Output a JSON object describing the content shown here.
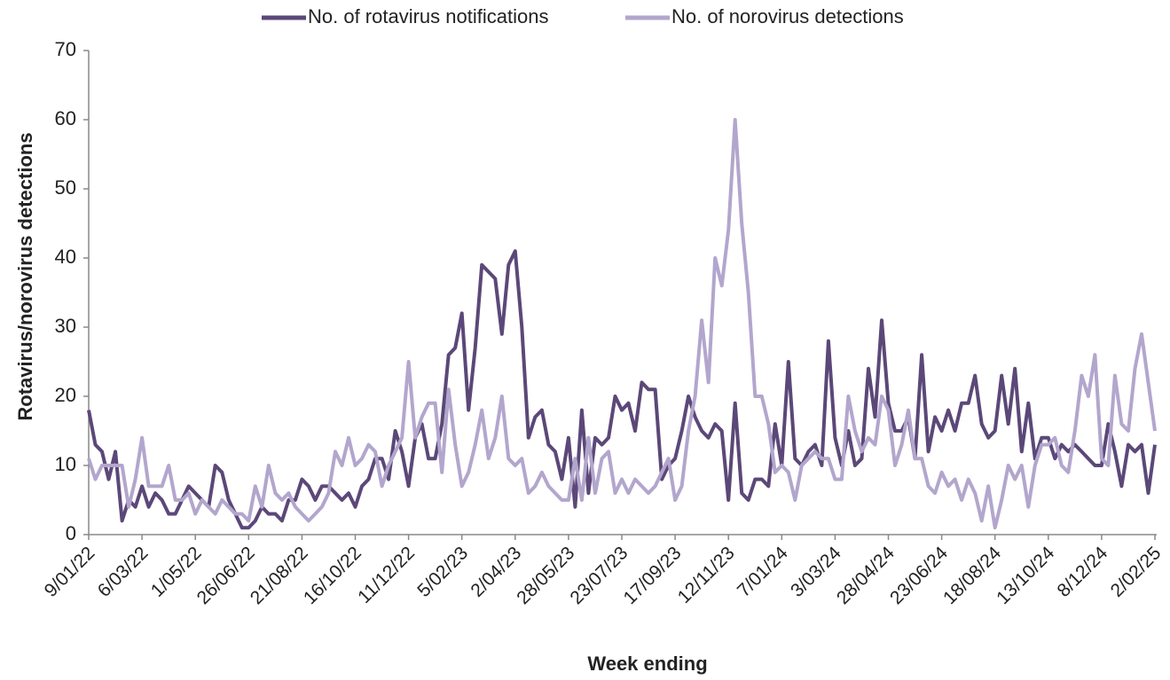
{
  "chart_data": {
    "type": "line",
    "y_label": "Rotavirus/norovirus detections",
    "x_label": "Week ending",
    "categories": [
      "9/01/22",
      null,
      null,
      null,
      null,
      null,
      null,
      null,
      "6/03/22",
      null,
      null,
      null,
      null,
      null,
      null,
      null,
      "1/05/22",
      null,
      null,
      null,
      null,
      null,
      null,
      null,
      "26/06/22",
      null,
      null,
      null,
      null,
      null,
      null,
      null,
      "21/08/22",
      null,
      null,
      null,
      null,
      null,
      null,
      null,
      "16/10/22",
      null,
      null,
      null,
      null,
      null,
      null,
      null,
      "11/12/22",
      null,
      null,
      null,
      null,
      null,
      null,
      null,
      "5/02/23",
      null,
      null,
      null,
      null,
      null,
      null,
      null,
      "2/04/23",
      null,
      null,
      null,
      null,
      null,
      null,
      null,
      "28/05/23",
      null,
      null,
      null,
      null,
      null,
      null,
      null,
      "23/07/23",
      null,
      null,
      null,
      null,
      null,
      null,
      null,
      "17/09/23",
      null,
      null,
      null,
      null,
      null,
      null,
      null,
      "12/11/23",
      null,
      null,
      null,
      null,
      null,
      null,
      null,
      "7/01/24",
      null,
      null,
      null,
      null,
      null,
      null,
      null,
      "3/03/24",
      null,
      null,
      null,
      null,
      null,
      null,
      null,
      "28/04/24",
      null,
      null,
      null,
      null,
      null,
      null,
      null,
      "23/06/24",
      null,
      null,
      null,
      null,
      null,
      null,
      null,
      "18/08/24",
      null,
      null,
      null,
      null,
      null,
      null,
      null,
      "13/10/24",
      null,
      null,
      null,
      null,
      null,
      null,
      null,
      "8/12/24",
      null,
      null,
      null,
      null,
      null,
      null,
      null,
      "2/02/25"
    ],
    "series": [
      {
        "name": "No. of rotavirus notifications",
        "color": "#5b4878",
        "values": [
          18,
          13,
          12,
          8,
          12,
          2,
          5,
          4,
          7,
          4,
          6,
          5,
          3,
          3,
          5,
          7,
          6,
          5,
          4,
          10,
          9,
          5,
          3,
          1,
          1,
          2,
          4,
          3,
          3,
          2,
          5,
          5,
          8,
          7,
          5,
          7,
          7,
          6,
          5,
          6,
          4,
          7,
          8,
          11,
          11,
          8,
          15,
          12,
          7,
          14,
          16,
          11,
          11,
          16,
          26,
          27,
          32,
          18,
          27,
          39,
          38,
          37,
          29,
          39,
          41,
          30,
          14,
          17,
          18,
          13,
          12,
          8,
          14,
          4,
          18,
          6,
          14,
          13,
          14,
          20,
          18,
          19,
          15,
          22,
          21,
          21,
          8,
          10,
          11,
          15,
          20,
          17,
          15,
          14,
          16,
          15,
          5,
          19,
          6,
          5,
          8,
          8,
          7,
          16,
          10,
          25,
          11,
          10,
          12,
          13,
          10,
          28,
          14,
          10,
          15,
          10,
          11,
          24,
          17,
          31,
          19,
          15,
          15,
          17,
          11,
          26,
          12,
          17,
          15,
          18,
          15,
          19,
          19,
          23,
          16,
          14,
          15,
          23,
          16,
          24,
          12,
          19,
          11,
          14,
          14,
          11,
          13,
          12,
          13,
          12,
          11,
          10,
          10,
          16,
          12,
          7,
          13,
          12,
          13,
          6,
          13
        ]
      },
      {
        "name": "No. of norovirus detections",
        "color": "#b3a6cd",
        "values": [
          11,
          8,
          10,
          10,
          10,
          10,
          4,
          8,
          14,
          7,
          7,
          7,
          10,
          5,
          5,
          6,
          3,
          5,
          4,
          3,
          5,
          4,
          3,
          3,
          2,
          7,
          4,
          10,
          6,
          5,
          6,
          4,
          3,
          2,
          3,
          4,
          6,
          12,
          10,
          14,
          10,
          11,
          13,
          12,
          7,
          10,
          12,
          14,
          25,
          14,
          17,
          19,
          19,
          9,
          21,
          13,
          7,
          9,
          13,
          18,
          11,
          14,
          20,
          11,
          10,
          11,
          6,
          7,
          9,
          7,
          6,
          5,
          5,
          11,
          5,
          14,
          6,
          11,
          12,
          6,
          8,
          6,
          8,
          7,
          6,
          7,
          9,
          11,
          5,
          7,
          15,
          20,
          31,
          22,
          40,
          36,
          44,
          60,
          45,
          35,
          20,
          20,
          16,
          9,
          10,
          9,
          5,
          10,
          11,
          12,
          11,
          11,
          8,
          8,
          20,
          15,
          12,
          14,
          13,
          20,
          18,
          10,
          13,
          18,
          11,
          11,
          7,
          6,
          9,
          7,
          8,
          5,
          8,
          6,
          2,
          7,
          1,
          5,
          10,
          8,
          10,
          4,
          10,
          13,
          13,
          14,
          10,
          9,
          15,
          23,
          20,
          26,
          11,
          10,
          23,
          16,
          15,
          24,
          29,
          22,
          15
        ]
      }
    ],
    "ylim": [
      0,
      70
    ],
    "yticks": [
      0,
      10,
      20,
      30,
      40,
      50,
      60,
      70
    ],
    "grid": false,
    "legend": "top"
  }
}
